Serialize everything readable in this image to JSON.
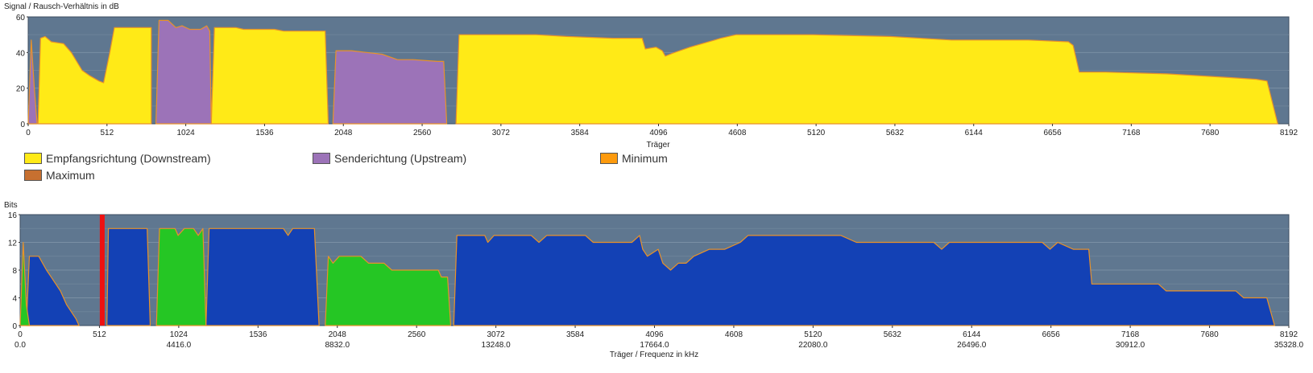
{
  "chart_data": [
    {
      "type": "area",
      "title": "",
      "ylabel": "Signal / Rausch-Verhältnis in dB",
      "xlabel": "Träger",
      "xlim": [
        0,
        8192
      ],
      "ylim": [
        0,
        60
      ],
      "yticks": [
        0,
        20,
        40,
        60
      ],
      "xticks": [
        0,
        512,
        1024,
        1536,
        2048,
        2560,
        3072,
        3584,
        4096,
        4608,
        5120,
        5632,
        6144,
        6656,
        7168,
        7680,
        8192
      ],
      "grid": true,
      "series": [
        {
          "name": "Empfangsrichtung (Downstream)",
          "color": "#ffea17",
          "segments": [
            [
              [
                64,
                0
              ],
              [
                80,
                48
              ],
              [
                110,
                49
              ],
              [
                150,
                46
              ],
              [
                230,
                45
              ],
              [
                280,
                40
              ],
              [
                350,
                30
              ],
              [
                400,
                27
              ],
              [
                460,
                24
              ],
              [
                490,
                23
              ],
              [
                530,
                40
              ],
              [
                560,
                54
              ],
              [
                800,
                54
              ],
              [
                800,
                0
              ]
            ],
            [
              [
                1190,
                0
              ],
              [
                1210,
                54
              ],
              [
                1350,
                54
              ],
              [
                1400,
                53
              ],
              [
                1600,
                53
              ],
              [
                1660,
                52
              ],
              [
                1930,
                52
              ],
              [
                1950,
                0
              ]
            ],
            [
              [
                2780,
                0
              ],
              [
                2800,
                50
              ],
              [
                3300,
                50
              ],
              [
                3500,
                49
              ],
              [
                3800,
                48
              ],
              [
                3990,
                48
              ],
              [
                4010,
                42
              ],
              [
                4080,
                43
              ],
              [
                4120,
                41
              ],
              [
                4140,
                38
              ],
              [
                4200,
                40
              ],
              [
                4300,
                43
              ],
              [
                4500,
                48
              ],
              [
                4600,
                50
              ],
              [
                5100,
                50
              ],
              [
                5600,
                49
              ],
              [
                6000,
                47
              ],
              [
                6500,
                47
              ],
              [
                6760,
                46
              ],
              [
                6790,
                44
              ],
              [
                6830,
                29
              ],
              [
                7000,
                29
              ],
              [
                7400,
                28
              ],
              [
                7800,
                26
              ],
              [
                7980,
                25
              ],
              [
                8050,
                24
              ],
              [
                8120,
                0
              ]
            ]
          ]
        },
        {
          "name": "Senderichtung (Upstream)",
          "color": "#9c73b8",
          "segments": [
            [
              [
                0,
                0
              ],
              [
                20,
                47
              ],
              [
                40,
                20
              ],
              [
                58,
                0
              ]
            ],
            [
              [
                830,
                0
              ],
              [
                850,
                58
              ],
              [
                910,
                58
              ],
              [
                960,
                54
              ],
              [
                1000,
                55
              ],
              [
                1050,
                53
              ],
              [
                1120,
                53
              ],
              [
                1160,
                55
              ],
              [
                1180,
                52
              ],
              [
                1190,
                0
              ]
            ],
            [
              [
                1980,
                0
              ],
              [
                2000,
                41
              ],
              [
                2100,
                41
              ],
              [
                2200,
                40
              ],
              [
                2300,
                39
              ],
              [
                2400,
                36
              ],
              [
                2500,
                36
              ],
              [
                2660,
                35
              ],
              [
                2700,
                35
              ],
              [
                2720,
                0
              ]
            ]
          ]
        }
      ],
      "legend": [
        "Empfangsrichtung (Downstream)",
        "Senderichtung (Upstream)",
        "Minimum",
        "Maximum"
      ],
      "legend_colors": [
        "#ffea17",
        "#9c73b8",
        "#fd9a0d",
        "#c77030"
      ],
      "legend_placement": "bottom"
    },
    {
      "type": "area",
      "title": "",
      "ylabel": "Bits",
      "xlabel": "Träger / Frequenz in kHz",
      "xlim": [
        0,
        8192
      ],
      "ylim": [
        0,
        16
      ],
      "yticks": [
        0,
        4,
        8,
        12,
        16
      ],
      "xticks": [
        0,
        512,
        1024,
        1536,
        2048,
        2560,
        3072,
        3584,
        4096,
        4608,
        5120,
        5632,
        6144,
        6656,
        7168,
        7680,
        8192
      ],
      "xticks_secondary": [
        "0.0",
        "4416.0",
        "8832.0",
        "13248.0",
        "17664.0",
        "22080.0",
        "26496.0",
        "30912.0",
        "35328.0"
      ],
      "grid": true,
      "marker": {
        "x": 530,
        "color": "#ee1111"
      },
      "series": [
        {
          "name": "",
          "color": "#1341b5",
          "segments": [
            [
              [
                40,
                0
              ],
              [
                60,
                10
              ],
              [
                120,
                10
              ],
              [
                170,
                8
              ],
              [
                200,
                7
              ],
              [
                260,
                5
              ],
              [
                300,
                3
              ],
              [
                360,
                1
              ],
              [
                380,
                0
              ]
            ],
            [
              [
                560,
                0
              ],
              [
                570,
                14
              ],
              [
                820,
                14
              ],
              [
                840,
                0
              ]
            ],
            [
              [
                1200,
                0
              ],
              [
                1220,
                14
              ],
              [
                1700,
                14
              ],
              [
                1730,
                13
              ],
              [
                1760,
                14
              ],
              [
                1900,
                14
              ],
              [
                1930,
                0
              ]
            ],
            [
              [
                2800,
                0
              ],
              [
                2820,
                13
              ],
              [
                3000,
                13
              ],
              [
                3020,
                12
              ],
              [
                3060,
                13
              ],
              [
                3200,
                13
              ],
              [
                3300,
                13
              ],
              [
                3350,
                12
              ],
              [
                3400,
                13
              ],
              [
                3650,
                13
              ],
              [
                3700,
                12
              ],
              [
                3760,
                12
              ],
              [
                3850,
                12
              ],
              [
                3950,
                12
              ],
              [
                4000,
                13
              ],
              [
                4020,
                11
              ],
              [
                4050,
                10
              ],
              [
                4120,
                11
              ],
              [
                4150,
                9
              ],
              [
                4200,
                8
              ],
              [
                4250,
                9
              ],
              [
                4300,
                9
              ],
              [
                4350,
                10
              ],
              [
                4450,
                11
              ],
              [
                4550,
                11
              ],
              [
                4650,
                12
              ],
              [
                4700,
                13
              ],
              [
                5100,
                13
              ],
              [
                5300,
                13
              ],
              [
                5400,
                12
              ],
              [
                5700,
                12
              ],
              [
                5900,
                12
              ],
              [
                5950,
                11
              ],
              [
                6000,
                12
              ],
              [
                6600,
                12
              ],
              [
                6650,
                11
              ],
              [
                6700,
                12
              ],
              [
                6800,
                11
              ],
              [
                6900,
                11
              ],
              [
                6920,
                6
              ],
              [
                7350,
                6
              ],
              [
                7400,
                5
              ],
              [
                7850,
                5
              ],
              [
                7900,
                4
              ],
              [
                8050,
                4
              ],
              [
                8100,
                0
              ]
            ]
          ]
        },
        {
          "name": "",
          "color": "#25c624",
          "segments": [
            [
              [
                0,
                0
              ],
              [
                20,
                12
              ],
              [
                40,
                3
              ],
              [
                60,
                0
              ]
            ],
            [
              [
                880,
                0
              ],
              [
                900,
                14
              ],
              [
                1000,
                14
              ],
              [
                1020,
                13
              ],
              [
                1060,
                14
              ],
              [
                1120,
                14
              ],
              [
                1150,
                13
              ],
              [
                1180,
                14
              ],
              [
                1200,
                0
              ]
            ],
            [
              [
                1970,
                0
              ],
              [
                1990,
                10
              ],
              [
                2020,
                9
              ],
              [
                2060,
                10
              ],
              [
                2200,
                10
              ],
              [
                2250,
                9
              ],
              [
                2350,
                9
              ],
              [
                2400,
                8
              ],
              [
                2700,
                8
              ],
              [
                2720,
                7
              ],
              [
                2760,
                7
              ],
              [
                2780,
                0
              ]
            ]
          ]
        }
      ]
    }
  ]
}
